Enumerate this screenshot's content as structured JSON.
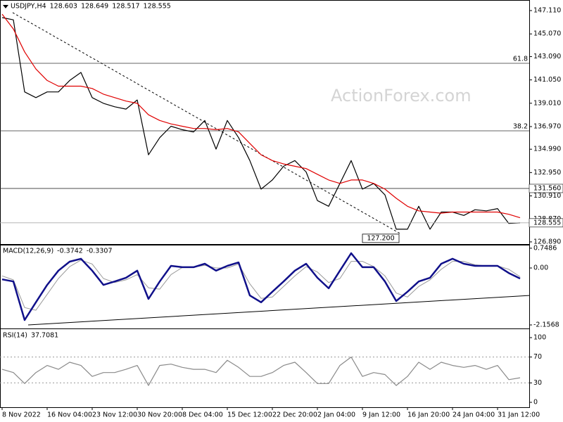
{
  "chart_data": [
    {
      "type": "line",
      "title": "USDJPY,H4",
      "ohlc": [
        128.603,
        128.649,
        128.517,
        128.555
      ],
      "watermark": "ActionForex.com",
      "xlim": [
        -0.75,
        187.25
      ],
      "ylim": [
        126.7,
        147.85
      ],
      "yticks": [
        {
          "value": 147.11,
          "label": "147.110"
        },
        {
          "value": 145.07,
          "label": "145.070"
        },
        {
          "value": 143.09,
          "label": "143.090"
        },
        {
          "value": 141.05,
          "label": "141.050"
        },
        {
          "value": 139.01,
          "label": "139.010"
        },
        {
          "value": 136.97,
          "label": "136.970"
        },
        {
          "value": 134.99,
          "label": "134.990"
        },
        {
          "value": 132.95,
          "label": "132.950"
        },
        {
          "value": 130.91,
          "label": "130.910"
        },
        {
          "value": 128.87,
          "label": "128.870"
        },
        {
          "value": 126.89,
          "label": "126.890"
        }
      ],
      "series": [
        {
          "color": "#000000",
          "width": 1.2,
          "x": [
            0,
            4,
            8,
            12,
            16,
            20,
            24,
            28,
            32,
            36,
            40,
            44,
            48,
            52,
            56,
            60,
            64,
            68,
            72,
            76,
            80,
            84,
            88,
            92,
            96,
            100,
            104,
            108,
            112,
            116,
            120,
            124,
            128,
            132,
            136,
            140,
            144,
            148,
            152,
            156,
            160,
            164,
            168,
            172,
            176,
            180,
            184
          ],
          "values": [
            146.5,
            146.3,
            140,
            139.5,
            140,
            140,
            141,
            141.7,
            139.5,
            139,
            138.7,
            138.5,
            139.3,
            134.5,
            136,
            137,
            136.7,
            136.5,
            137.5,
            135,
            137.5,
            136,
            134,
            131.5,
            132.3,
            133.5,
            134,
            133,
            130.5,
            130,
            132,
            134,
            131.5,
            132,
            131,
            128,
            128,
            130,
            128,
            129.5,
            129.5,
            129.2,
            129.7,
            129.6,
            129.8,
            128.5,
            128.555
          ]
        },
        {
          "color": "#e00000",
          "width": 1.2,
          "x": [
            0,
            4,
            8,
            12,
            16,
            20,
            24,
            28,
            32,
            36,
            40,
            44,
            48,
            52,
            56,
            60,
            64,
            68,
            72,
            76,
            80,
            84,
            88,
            92,
            96,
            100,
            104,
            108,
            112,
            116,
            120,
            124,
            128,
            132,
            136,
            140,
            144,
            148,
            152,
            156,
            160,
            164,
            168,
            172,
            176,
            180,
            184
          ],
          "values": [
            146.8,
            145.5,
            143.5,
            142,
            141,
            140.5,
            140.5,
            140.5,
            140.3,
            139.8,
            139.5,
            139.2,
            139,
            138,
            137.5,
            137.2,
            137,
            136.8,
            136.8,
            136.7,
            136.8,
            136.5,
            135.5,
            134.5,
            134,
            133.7,
            133.5,
            133.3,
            132.8,
            132.3,
            132,
            132.3,
            132.3,
            132,
            131.5,
            130.7,
            130,
            129.6,
            129.5,
            129.4,
            129.5,
            129.5,
            129.5,
            129.5,
            129.5,
            129.3,
            129.0
          ]
        }
      ],
      "levels": [
        {
          "value": 142.5,
          "label": "61.8",
          "box": false
        },
        {
          "value": 136.6,
          "label": "38.2",
          "box": false
        },
        {
          "value": 131.56,
          "label": "131.560",
          "box": true
        }
      ],
      "last_line": true,
      "trendline": {
        "x": [
          3.75,
          141.75
        ],
        "values": [
          146.93,
          127.57
        ],
        "dashed": true
      },
      "annotations": [
        {
          "x": 141,
          "value": 127.2,
          "label": "127.200"
        }
      ]
    },
    {
      "type": "line",
      "title": "MACD(12,26,9)",
      "last": [
        -0.3742,
        -0.3307
      ],
      "xlim": [
        -0.75,
        187.25
      ],
      "ylim": [
        -2.263,
        0.826
      ],
      "yticks": [
        0.7486,
        {
          "value": 0,
          "label": "0.00"
        },
        -2.1568
      ],
      "series": [
        {
          "color": "#9a9a9a",
          "width": 1,
          "x": [
            0,
            4,
            8,
            12,
            16,
            20,
            24,
            28,
            32,
            36,
            40,
            44,
            48,
            52,
            56,
            60,
            64,
            68,
            72,
            76,
            80,
            84,
            88,
            92,
            96,
            100,
            104,
            108,
            112,
            116,
            120,
            124,
            128,
            132,
            136,
            140,
            144,
            148,
            152,
            156,
            160,
            164,
            168,
            172,
            176,
            180,
            184
          ],
          "values": [
            -0.3,
            -0.45,
            -1.5,
            -1.6,
            -1.0,
            -0.4,
            0.05,
            0.3,
            0.15,
            -0.4,
            -0.55,
            -0.45,
            -0.25,
            -0.75,
            -0.8,
            -0.25,
            0.02,
            0.03,
            0.1,
            0.0,
            0.0,
            0.15,
            -0.6,
            -1.15,
            -1.1,
            -0.7,
            -0.3,
            0.05,
            -0.15,
            -0.55,
            -0.4,
            0.25,
            0.25,
            0.05,
            -0.3,
            -0.95,
            -1.1,
            -0.7,
            -0.45,
            -0.05,
            0.25,
            0.25,
            0.12,
            0.08,
            0.08,
            -0.05,
            -0.33
          ]
        },
        {
          "color": "#10108a",
          "width": 2.5,
          "x": [
            0,
            4,
            8,
            12,
            16,
            20,
            24,
            28,
            32,
            36,
            40,
            44,
            48,
            52,
            56,
            60,
            64,
            68,
            72,
            76,
            80,
            84,
            88,
            92,
            96,
            100,
            104,
            108,
            112,
            116,
            120,
            124,
            128,
            132,
            136,
            140,
            144,
            148,
            152,
            156,
            160,
            164,
            168,
            172,
            176,
            180,
            184
          ],
          "values": [
            -0.43,
            -0.51,
            -1.97,
            -1.3,
            -0.64,
            -0.1,
            0.24,
            0.35,
            -0.1,
            -0.64,
            -0.51,
            -0.37,
            -0.1,
            -1.17,
            -0.51,
            0.08,
            0.03,
            0.03,
            0.16,
            -0.1,
            0.08,
            0.21,
            -1.04,
            -1.3,
            -0.9,
            -0.51,
            -0.1,
            0.16,
            -0.37,
            -0.77,
            -0.1,
            0.56,
            0.03,
            0.03,
            -0.51,
            -1.25,
            -0.9,
            -0.51,
            -0.37,
            0.16,
            0.35,
            0.16,
            0.08,
            0.08,
            0.08,
            -0.19,
            -0.4
          ]
        }
      ],
      "trendline": {
        "x": [
          9.25,
          187.25
        ],
        "values": [
          -2.1568,
          -1.04
        ],
        "dashed": false
      }
    },
    {
      "type": "line",
      "title": "RSI(14)",
      "last": [
        37.7081
      ],
      "xlim": [
        -0.75,
        187.25
      ],
      "ylim": [
        -6.5,
        110.9
      ],
      "yticks": [
        100,
        70,
        30,
        0
      ],
      "levels": [
        {
          "value": 70,
          "dotted": true
        },
        {
          "value": 30,
          "dotted": true
        }
      ],
      "series": [
        {
          "color": "#8a8a8a",
          "width": 1.2,
          "x": [
            0,
            4,
            8,
            12,
            16,
            20,
            24,
            28,
            32,
            36,
            40,
            44,
            48,
            52,
            56,
            60,
            64,
            68,
            72,
            76,
            80,
            84,
            88,
            92,
            96,
            100,
            104,
            108,
            112,
            116,
            120,
            124,
            128,
            132,
            136,
            140,
            144,
            148,
            152,
            156,
            160,
            164,
            168,
            172,
            176,
            180,
            184
          ],
          "values": [
            51,
            46,
            29,
            46,
            57,
            51,
            62,
            57,
            40,
            46,
            46,
            51,
            57,
            26,
            57,
            59,
            54,
            51,
            51,
            46,
            65,
            54,
            40,
            40,
            46,
            57,
            62,
            46,
            29,
            29,
            57,
            70,
            40,
            46,
            43,
            26,
            40,
            62,
            51,
            62,
            57,
            54,
            57,
            51,
            57,
            35,
            38
          ]
        }
      ],
      "xticks": [
        {
          "value": 0,
          "label": "8 Nov 2022"
        },
        {
          "value": 16,
          "label": "16 Nov 04:00"
        },
        {
          "value": 32,
          "label": "23 Nov 12:00"
        },
        {
          "value": 48,
          "label": "30 Nov 20:00"
        },
        {
          "value": 64,
          "label": "8 Dec 04:00"
        },
        {
          "value": 80,
          "label": "15 Dec 12:00"
        },
        {
          "value": 96,
          "label": "22 Dec 20:00"
        },
        {
          "value": 112,
          "label": "2 Jan 04:00"
        },
        {
          "value": 128,
          "label": "9 Jan 12:00"
        },
        {
          "value": 144,
          "label": "16 Jan 20:00"
        },
        {
          "value": 160,
          "label": "24 Jan 04:00"
        },
        {
          "value": 176,
          "label": "31 Jan 12:00"
        }
      ]
    }
  ]
}
